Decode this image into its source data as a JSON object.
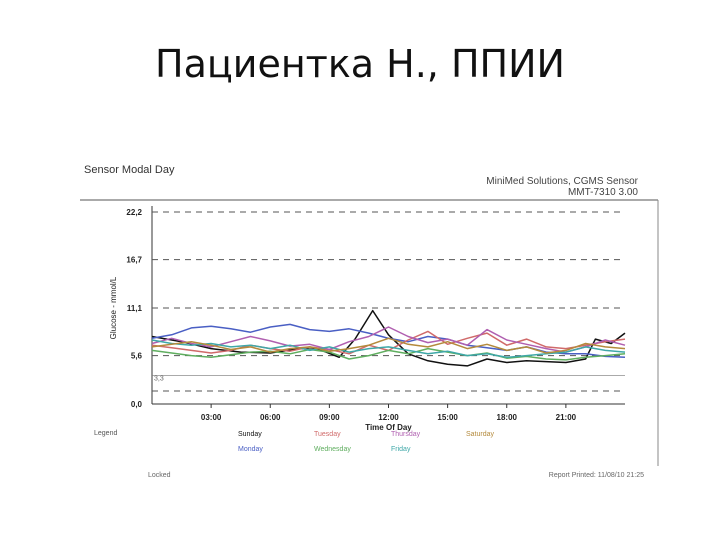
{
  "slide": {
    "title": "Пациентка Н., ППИИ"
  },
  "report": {
    "title": "Sensor Modal Day",
    "vendor_line1": "MiniMed Solutions, CGMS Sensor",
    "vendor_line2": "MMT-7310 3.00",
    "legend_label": "Legend",
    "footer_left": "Locked",
    "footer_right": "Report Printed: 11/08/10 21:25"
  },
  "chart_data": {
    "type": "line",
    "xlabel": "Time Of Day",
    "ylabel": "Glucose - mmol/L",
    "xlim": [
      0,
      24
    ],
    "ylim": [
      0,
      22.2
    ],
    "x_ticks": [
      {
        "value": 3,
        "label": "03:00"
      },
      {
        "value": 6,
        "label": "06:00"
      },
      {
        "value": 9,
        "label": "09:00"
      },
      {
        "value": 12,
        "label": "12:00"
      },
      {
        "value": 15,
        "label": "15:00"
      },
      {
        "value": 18,
        "label": "18:00"
      },
      {
        "value": 21,
        "label": "21:00"
      }
    ],
    "y_ticks": [
      {
        "value": 22.2,
        "label": "22,2"
      },
      {
        "value": 16.7,
        "label": "16,7"
      },
      {
        "value": 11.1,
        "label": "11,1"
      },
      {
        "value": 5.6,
        "label": "5,6"
      },
      {
        "value": 0,
        "label": "0,0"
      }
    ],
    "target_low": {
      "value": 3.3,
      "label": "3,3"
    },
    "grid": true,
    "legend_position": "bottom",
    "series": [
      {
        "name": "Sunday",
        "color": "#111111",
        "x": [
          0,
          1.5,
          3,
          4.5,
          6,
          7.5,
          8.5,
          9.5,
          10.3,
          11.2,
          12,
          13,
          14,
          15,
          16,
          17,
          18,
          19,
          20,
          21,
          22,
          22.5,
          23.3,
          24
        ],
        "y": [
          7.8,
          7.2,
          6.4,
          6.0,
          5.9,
          6.4,
          6.3,
          5.4,
          7.5,
          10.8,
          8.0,
          5.8,
          5.0,
          4.6,
          4.4,
          5.2,
          4.8,
          5.0,
          4.9,
          4.8,
          5.2,
          7.5,
          7.0,
          8.2
        ]
      },
      {
        "name": "Monday",
        "color": "#4a5fc4",
        "x": [
          0,
          1,
          2,
          3,
          4,
          5,
          6,
          7,
          8,
          9,
          10,
          11,
          12,
          13,
          14,
          15,
          16,
          17,
          18,
          19,
          20,
          21,
          22,
          23,
          24
        ],
        "y": [
          7.6,
          8.0,
          8.8,
          9.0,
          8.7,
          8.3,
          8.9,
          9.2,
          8.6,
          8.4,
          8.7,
          8.2,
          7.6,
          7.2,
          7.8,
          7.5,
          6.8,
          6.5,
          6.2,
          6.6,
          6.0,
          5.8,
          5.8,
          5.5,
          5.4
        ]
      },
      {
        "name": "Tuesday",
        "color": "#d06a6a",
        "x": [
          0,
          1,
          2,
          3,
          4,
          5,
          6,
          7,
          8,
          9,
          10,
          11,
          12,
          13,
          14,
          15,
          16,
          17,
          18,
          19,
          20,
          21,
          22,
          23,
          24
        ],
        "y": [
          6.8,
          6.5,
          6.2,
          5.9,
          6.2,
          6.8,
          6.4,
          6.1,
          6.6,
          6.3,
          5.8,
          6.8,
          6.2,
          7.4,
          8.4,
          6.9,
          7.6,
          8.2,
          6.8,
          7.5,
          6.6,
          6.4,
          6.8,
          7.2,
          7.5
        ]
      },
      {
        "name": "Wednesday",
        "color": "#5fae5f",
        "x": [
          0,
          1,
          2,
          3,
          4,
          5,
          6,
          7,
          8,
          9,
          10,
          11,
          12,
          13,
          14,
          15,
          16,
          17,
          18,
          19,
          20,
          21,
          22,
          23,
          24
        ],
        "y": [
          6.2,
          5.9,
          5.6,
          5.4,
          5.7,
          6.0,
          6.1,
          5.8,
          6.3,
          6.0,
          5.2,
          5.6,
          6.2,
          5.8,
          6.4,
          6.0,
          5.6,
          5.9,
          5.3,
          5.5,
          5.2,
          5.1,
          5.4,
          5.6,
          5.8
        ]
      },
      {
        "name": "Thursday",
        "color": "#b05fb0",
        "x": [
          0,
          1,
          2,
          3,
          4,
          5,
          6,
          7,
          8,
          9,
          10,
          11,
          12,
          13,
          14,
          15,
          16,
          17,
          18,
          19,
          20,
          21,
          22,
          23,
          24
        ],
        "y": [
          7.0,
          7.6,
          7.0,
          6.6,
          7.2,
          7.8,
          7.3,
          6.7,
          6.9,
          6.3,
          7.2,
          7.8,
          8.9,
          7.8,
          7.1,
          7.5,
          6.8,
          8.6,
          7.4,
          6.9,
          6.4,
          6.0,
          6.6,
          7.4,
          6.8
        ]
      },
      {
        "name": "Friday",
        "color": "#3fa8a8",
        "x": [
          0,
          1,
          2,
          3,
          4,
          5,
          6,
          7,
          8,
          9,
          10,
          11,
          12,
          13,
          14,
          15,
          16,
          17,
          18,
          19,
          20,
          21,
          22,
          23,
          24
        ],
        "y": [
          7.4,
          7.0,
          6.8,
          7.0,
          6.6,
          6.8,
          6.4,
          6.8,
          6.2,
          6.6,
          6.0,
          6.4,
          6.6,
          6.2,
          5.8,
          6.1,
          5.6,
          5.8,
          5.4,
          5.6,
          5.8,
          6.0,
          6.6,
          6.2,
          6.0
        ]
      },
      {
        "name": "Saturday",
        "color": "#b48a3c",
        "x": [
          0,
          1,
          2,
          3,
          4,
          5,
          6,
          7,
          8,
          9,
          10,
          11,
          12,
          13,
          14,
          15,
          16,
          17,
          18,
          19,
          20,
          21,
          22,
          23,
          24
        ],
        "y": [
          6.6,
          6.9,
          7.2,
          6.8,
          6.3,
          6.6,
          6.0,
          6.4,
          6.6,
          6.1,
          6.4,
          6.8,
          7.6,
          6.9,
          6.6,
          7.2,
          6.4,
          6.9,
          6.2,
          6.6,
          5.9,
          6.2,
          7.0,
          6.6,
          6.4
        ]
      }
    ],
    "legend_order": [
      "Sunday",
      "Tuesday",
      "Thursday",
      "Saturday",
      "Monday",
      "Wednesday",
      "Friday"
    ]
  }
}
